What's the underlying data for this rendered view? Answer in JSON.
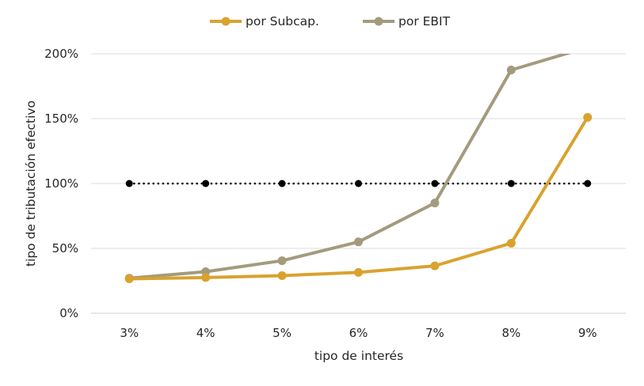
{
  "chart_data": {
    "type": "line",
    "title": "",
    "xlabel": "tipo de interés",
    "ylabel": "tipo de tributación efectivo",
    "categories": [
      "3%",
      "4%",
      "5%",
      "6%",
      "7%",
      "8%",
      "9%"
    ],
    "ylim": [
      0,
      200
    ],
    "yticks": [
      0,
      50,
      100,
      150,
      200
    ],
    "ytick_labels": [
      "0%",
      "50%",
      "100%",
      "150%",
      "200%"
    ],
    "grid": "horizontal",
    "legend_position": "top",
    "series": [
      {
        "name": "por Subcap.",
        "color": "#d9a22f",
        "values": [
          26.5,
          27.5,
          29,
          31.5,
          36.5,
          54,
          151
        ],
        "style": "solid"
      },
      {
        "name": "por EBIT",
        "color": "#a39b7d",
        "values": [
          27,
          32,
          40.5,
          55,
          85,
          187.5,
          205
        ],
        "style": "solid",
        "last_point_clipped": true
      },
      {
        "name": "",
        "color": "#000000",
        "values": [
          100,
          100,
          100,
          100,
          100,
          100,
          100
        ],
        "style": "dotted"
      }
    ]
  }
}
